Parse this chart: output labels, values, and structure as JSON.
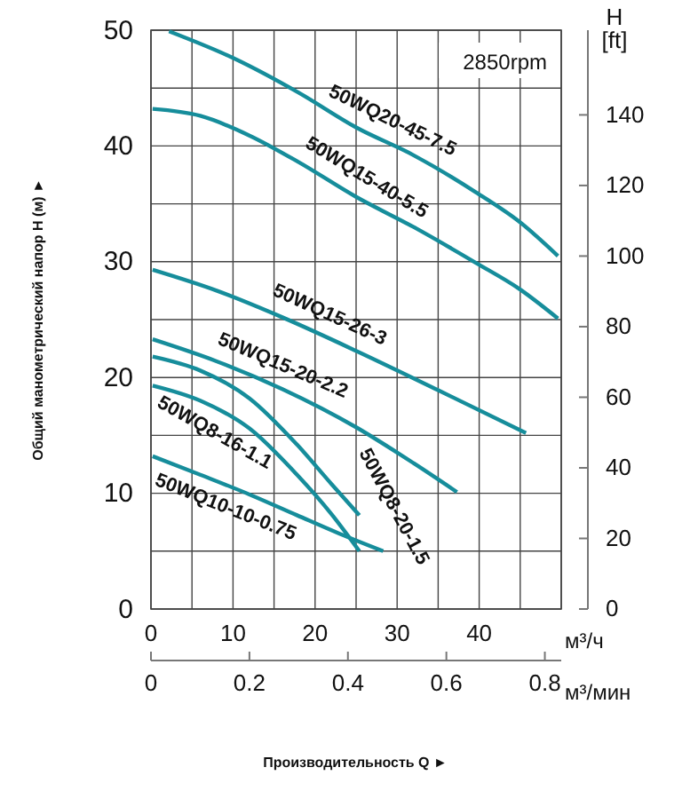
{
  "chart_data": {
    "type": "line",
    "xlabel": "м³/ч",
    "x2label": "м³/мин",
    "ylabel": "Общий манометрический напор H (м) ►",
    "y2label": "H [ft]",
    "annotations": [
      "2850rpm",
      "Производительность Q ►"
    ],
    "xlim": [
      0,
      50
    ],
    "xticks": [
      0,
      10,
      20,
      30,
      40
    ],
    "x2lim": [
      0,
      0.8333
    ],
    "x2ticks": [
      0,
      0.2,
      0.4,
      0.6,
      0.8
    ],
    "ylim": [
      0,
      50
    ],
    "yticks": [
      0,
      10,
      20,
      30,
      40,
      50
    ],
    "y2lim": [
      0,
      164
    ],
    "y2ticks": [
      0,
      20,
      40,
      60,
      80,
      100,
      120,
      140
    ],
    "grid": true,
    "marker": "none",
    "line_style": "solid",
    "series": [
      {
        "name": "50WQ20-45-7.5",
        "color": "#168d9b",
        "x": [
          2.2,
          10,
          18,
          25,
          32,
          39.6,
          45,
          49.6
        ],
        "values": [
          49.9,
          47.6,
          44.6,
          41.6,
          39.2,
          36,
          33.4,
          30.5
        ]
      },
      {
        "name": "50WQ15-40-5.5",
        "color": "#168d9b",
        "x": [
          0.2,
          6,
          12,
          18,
          25,
          32,
          39.6,
          45,
          49.6
        ],
        "values": [
          43.2,
          42.6,
          40.9,
          38.6,
          35.6,
          33,
          29.9,
          27.6,
          25.1
        ]
      },
      {
        "name": "50WQ15-26-3",
        "color": "#168d9b",
        "x": [
          0.2,
          8,
          16,
          25,
          35,
          45.7
        ],
        "values": [
          29.3,
          27.5,
          25.2,
          22.3,
          18.9,
          15.2
        ]
      },
      {
        "name": "50WQ15-20-2.2",
        "color": "#168d9b",
        "x": [
          0.2,
          8,
          16,
          25,
          32,
          37.3
        ],
        "values": [
          23.3,
          21.4,
          19,
          15.7,
          12.6,
          10.1
        ]
      },
      {
        "name": "50WQ8-20-1.5",
        "color": "#168d9b",
        "x": [
          0.2,
          6,
          12,
          17.8,
          22,
          25.4
        ],
        "values": [
          21.8,
          20.6,
          18.2,
          14.2,
          10.8,
          8.1
        ]
      },
      {
        "name": "50WQ8-16-1.1",
        "color": "#168d9b",
        "x": [
          0.2,
          6,
          12,
          17.8,
          22,
          25.4
        ],
        "values": [
          19.3,
          18,
          15.6,
          11.6,
          8.2,
          5
        ]
      },
      {
        "name": "50WQ10-10-0.75",
        "color": "#168d9b",
        "x": [
          0.2,
          6,
          12,
          17.8,
          23,
          28.3
        ],
        "values": [
          13.2,
          11.6,
          9.9,
          8.1,
          6.5,
          5
        ]
      }
    ]
  }
}
